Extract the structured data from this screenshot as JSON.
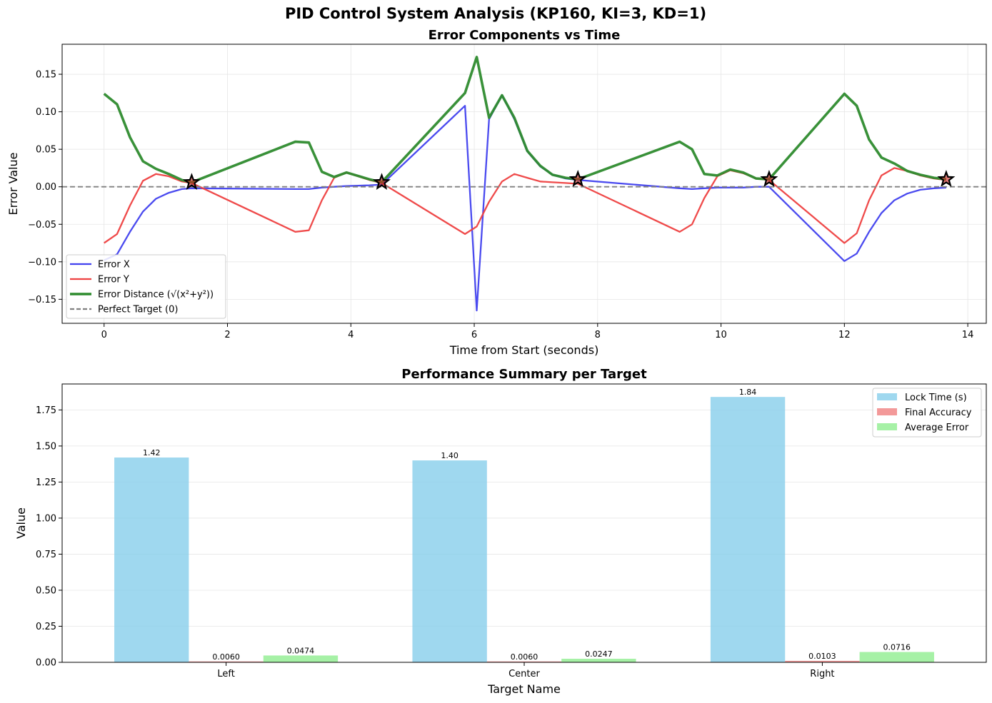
{
  "suptitle": "PID Control System Analysis (KP160, KI=3, KD=1)",
  "chart_data": [
    {
      "type": "line",
      "title": "Error Components vs Time",
      "xlabel": "Time from Start (seconds)",
      "ylabel": "Error Value",
      "xlim": [
        -0.68,
        14.3
      ],
      "ylim": [
        -0.182,
        0.19
      ],
      "xticks": [
        0,
        2,
        4,
        6,
        8,
        10,
        12,
        14
      ],
      "xtick_labels": [
        "0",
        "2",
        "4",
        "6",
        "8",
        "10",
        "12",
        "14"
      ],
      "yticks": [
        -0.15,
        -0.1,
        -0.05,
        0.0,
        0.05,
        0.1,
        0.15
      ],
      "ytick_labels": [
        "−0.15",
        "−0.10",
        "−0.05",
        "0.00",
        "0.05",
        "0.10",
        "0.15"
      ],
      "grid": true,
      "legend_position": "lower-left",
      "series": [
        {
          "name": "Error X",
          "color": "#4040ee",
          "x": [
            0,
            0.21,
            0.42,
            0.63,
            0.84,
            1.05,
            1.26,
            1.42,
            3.1,
            3.32,
            3.53,
            3.73,
            3.93,
            4.3,
            4.5,
            5.85,
            6.04,
            6.24,
            6.45,
            6.65,
            6.86,
            7.07,
            7.27,
            7.48,
            7.68,
            9.33,
            9.53,
            9.73,
            9.94,
            10.15,
            10.36,
            10.57,
            10.78,
            12.0,
            12.2,
            12.4,
            12.6,
            12.81,
            13.02,
            13.23,
            13.45,
            13.65
          ],
          "y": [
            -0.098,
            -0.09,
            -0.06,
            -0.033,
            -0.016,
            -0.008,
            -0.003,
            -0.002,
            -0.003,
            -0.003,
            -0.001,
            0.0,
            0.001,
            0.002,
            0.003,
            0.108,
            -0.165,
            0.09,
            0.122,
            0.09,
            0.047,
            0.027,
            0.016,
            0.011,
            0.009,
            -0.002,
            -0.003,
            -0.002,
            -0.001,
            -0.001,
            -0.001,
            0.0,
            0.0,
            -0.099,
            -0.089,
            -0.06,
            -0.035,
            -0.018,
            -0.009,
            -0.004,
            -0.002,
            -0.001
          ]
        },
        {
          "name": "Error Y",
          "color": "#ee4040",
          "x": [
            0,
            0.21,
            0.42,
            0.63,
            0.84,
            1.05,
            1.26,
            1.42,
            3.1,
            3.32,
            3.53,
            3.73,
            3.93,
            4.3,
            4.5,
            5.85,
            6.04,
            6.24,
            6.45,
            6.65,
            6.86,
            7.07,
            7.27,
            7.48,
            7.68,
            9.33,
            9.53,
            9.73,
            9.94,
            10.15,
            10.36,
            10.57,
            10.78,
            12.0,
            12.2,
            12.4,
            12.6,
            12.81,
            13.02,
            13.23,
            13.45,
            13.65
          ],
          "y": [
            -0.075,
            -0.063,
            -0.025,
            0.008,
            0.017,
            0.014,
            0.007,
            0.005,
            -0.06,
            -0.058,
            -0.018,
            0.012,
            0.019,
            0.009,
            0.005,
            -0.063,
            -0.053,
            -0.02,
            0.007,
            0.017,
            0.012,
            0.007,
            0.006,
            0.005,
            0.004,
            -0.06,
            -0.05,
            -0.015,
            0.014,
            0.022,
            0.018,
            0.011,
            0.009,
            -0.075,
            -0.062,
            -0.018,
            0.015,
            0.025,
            0.021,
            0.015,
            0.011,
            0.009
          ]
        },
        {
          "name": "Error Distance (√(x²+y²))",
          "color": "#2e8b2e",
          "x": [
            0,
            0.21,
            0.42,
            0.63,
            0.84,
            1.05,
            1.26,
            1.42,
            3.1,
            3.32,
            3.53,
            3.73,
            3.93,
            4.3,
            4.5,
            5.85,
            6.04,
            6.24,
            6.45,
            6.65,
            6.86,
            7.07,
            7.27,
            7.48,
            7.68,
            9.33,
            9.53,
            9.73,
            9.94,
            10.15,
            10.36,
            10.57,
            10.78,
            12.0,
            12.2,
            12.4,
            12.6,
            12.81,
            13.02,
            13.23,
            13.45,
            13.65
          ],
          "y": [
            0.124,
            0.11,
            0.066,
            0.034,
            0.024,
            0.017,
            0.009,
            0.006,
            0.06,
            0.059,
            0.02,
            0.013,
            0.019,
            0.01,
            0.006,
            0.125,
            0.173,
            0.092,
            0.122,
            0.092,
            0.048,
            0.028,
            0.016,
            0.012,
            0.01,
            0.06,
            0.05,
            0.017,
            0.015,
            0.023,
            0.019,
            0.011,
            0.01,
            0.124,
            0.108,
            0.063,
            0.039,
            0.031,
            0.021,
            0.016,
            0.012,
            0.01
          ]
        },
        {
          "name": "Perfect Target (0)",
          "color": "#808080",
          "style": "dashed",
          "y_constant": 0
        }
      ],
      "markers": [
        {
          "x": 1.42,
          "y": 0.006
        },
        {
          "x": 4.5,
          "y": 0.006
        },
        {
          "x": 7.68,
          "y": 0.01
        },
        {
          "x": 10.78,
          "y": 0.01
        },
        {
          "x": 13.65,
          "y": 0.01
        }
      ]
    },
    {
      "type": "bar",
      "title": "Performance Summary per Target",
      "xlabel": "Target Name",
      "ylabel": "Value",
      "categories": [
        "Left",
        "Center",
        "Right"
      ],
      "ylim": [
        0,
        1.93
      ],
      "yticks": [
        0,
        0.25,
        0.5,
        0.75,
        1.0,
        1.25,
        1.5,
        1.75
      ],
      "ytick_labels": [
        "0.00",
        "0.25",
        "0.50",
        "0.75",
        "1.00",
        "1.25",
        "1.50",
        "1.75"
      ],
      "grid": true,
      "legend_position": "top-right",
      "series": [
        {
          "name": "Lock Time (s)",
          "color": "#87ceeb",
          "values": [
            1.42,
            1.4,
            1.84
          ],
          "labels": [
            "1.42",
            "1.40",
            "1.84"
          ]
        },
        {
          "name": "Final Accuracy",
          "color": "#f08080",
          "values": [
            0.006,
            0.006,
            0.0103
          ],
          "labels": [
            "0.0060",
            "0.0060",
            "0.0103"
          ]
        },
        {
          "name": "Average Error",
          "color": "#90ee90",
          "values": [
            0.0474,
            0.0247,
            0.0716
          ],
          "labels": [
            "0.0474",
            "0.0247",
            "0.0716"
          ]
        }
      ]
    }
  ]
}
